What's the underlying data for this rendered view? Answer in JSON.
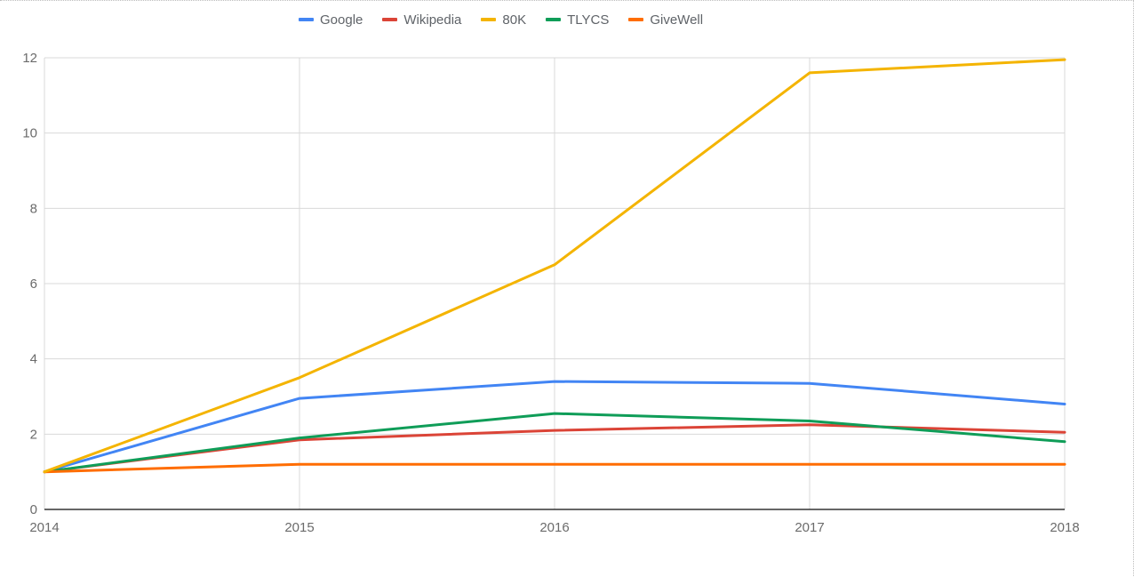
{
  "chart_data": {
    "type": "line",
    "title": "",
    "xlabel": "",
    "ylabel": "",
    "categories": [
      "2014",
      "2015",
      "2016",
      "2017",
      "2018"
    ],
    "ylim": [
      0,
      12
    ],
    "yticks": [
      0,
      2,
      4,
      6,
      8,
      10,
      12
    ],
    "grid": true,
    "legend_position": "top",
    "series": [
      {
        "name": "Google",
        "color": "#4285f4",
        "values": [
          1.0,
          2.95,
          3.4,
          3.35,
          2.8
        ]
      },
      {
        "name": "Wikipedia",
        "color": "#db4437",
        "values": [
          1.0,
          1.85,
          2.1,
          2.25,
          2.05
        ]
      },
      {
        "name": "80K",
        "color": "#f4b400",
        "values": [
          1.0,
          3.5,
          6.5,
          11.6,
          11.95
        ]
      },
      {
        "name": "TLYCS",
        "color": "#0f9d58",
        "values": [
          1.0,
          1.9,
          2.55,
          2.35,
          1.8
        ]
      },
      {
        "name": "GiveWell",
        "color": "#ff6d01",
        "values": [
          1.0,
          1.2,
          1.2,
          1.2,
          1.2
        ]
      }
    ]
  }
}
